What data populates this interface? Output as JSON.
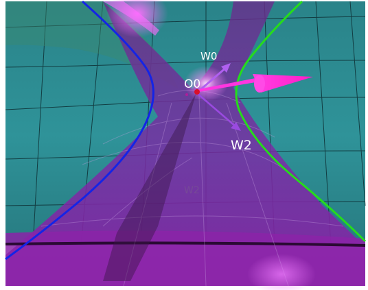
{
  "scene": {
    "labels": {
      "origin": "O0",
      "w0": "W0",
      "w2": "W2",
      "reflected_w2": "W2"
    },
    "colors": {
      "background_teal": "#2f8f95",
      "grid_lines": "#0d2e33",
      "purple_cone": "#7a2aa0",
      "magenta_highlight": "#ff3cf0",
      "left_hyperbola": "#1020e0",
      "right_hyperbola": "#22d61a",
      "origin_point": "#d9102a",
      "arrow_vectors": "#a050e8",
      "big_arrow": "#ff2ad8"
    },
    "icons": {
      "origin_point": "origin-point-icon",
      "big_arrow": "magenta-arrow-icon"
    }
  }
}
